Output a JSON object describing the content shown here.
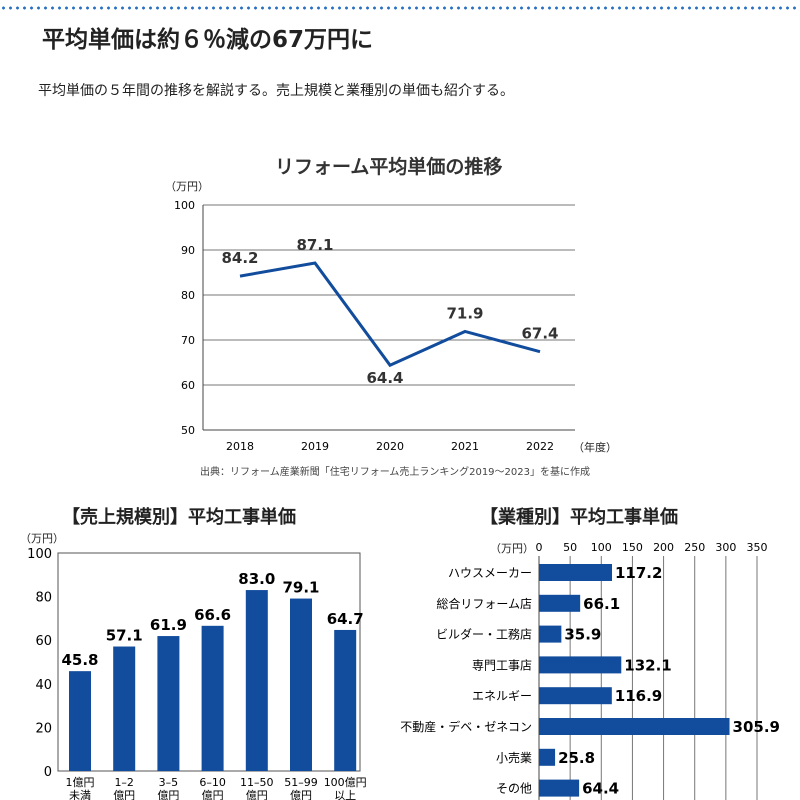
{
  "header": {
    "title": "平均単価は約６％減の67万円に",
    "lead": "平均単価の５年間の推移を解説する。売上規模と業種別の単価も紹介する。"
  },
  "colors": {
    "bar": "#124c9c",
    "line": "#124c9c",
    "dots": "#2a6fc0"
  },
  "chart_data": [
    {
      "type": "line",
      "title": "リフォーム平均単価の推移",
      "ylabel": "（万円）",
      "xlabel": "（年度）",
      "categories": [
        "2018",
        "2019",
        "2020",
        "2021",
        "2022"
      ],
      "values": [
        84.2,
        87.1,
        64.4,
        71.9,
        67.4
      ],
      "ylim": [
        50,
        100
      ],
      "yticks": [
        50,
        60,
        70,
        80,
        90,
        100
      ],
      "grid": true,
      "source": "出典：リフォーム産業新聞「住宅リフォーム売上ランキング2019～2023」を基に作成"
    },
    {
      "type": "bar",
      "title": "【売上規模別】平均工事単価",
      "ylabel": "（万円）",
      "categories": [
        [
          "1億円",
          "未満"
        ],
        [
          "1–2",
          "億円"
        ],
        [
          "3–5",
          "億円"
        ],
        [
          "6–10",
          "億円"
        ],
        [
          "11–50",
          "億円"
        ],
        [
          "51–99",
          "億円"
        ],
        [
          "100億円",
          "以上"
        ]
      ],
      "values": [
        45.8,
        57.1,
        61.9,
        66.6,
        83.0,
        79.1,
        64.7
      ],
      "ylim": [
        0,
        100
      ],
      "yticks": [
        0,
        20,
        40,
        60,
        80,
        100
      ]
    },
    {
      "type": "bar",
      "orientation": "horizontal",
      "title": "【業種別】平均工事単価",
      "xlabel": "（万円）",
      "categories": [
        "ハウスメーカー",
        "総合リフォーム店",
        "ビルダー・工務店",
        "専門工事店",
        "エネルギー",
        "不動産・デベ・ゼネコン",
        "小売業",
        "その他"
      ],
      "values": [
        117.2,
        66.1,
        35.9,
        132.1,
        116.9,
        305.9,
        25.8,
        64.4
      ],
      "xlim": [
        0,
        350
      ],
      "xticks": [
        0,
        50,
        100,
        150,
        200,
        250,
        300,
        350
      ],
      "grid": true
    }
  ]
}
